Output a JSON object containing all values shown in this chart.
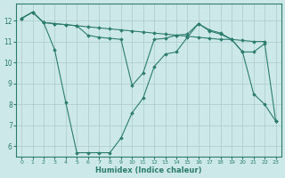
{
  "xlabel": "Humidex (Indice chaleur)",
  "bg_color": "#cce8e8",
  "grid_color": "#aacccc",
  "line_color": "#2d7d6e",
  "xlim": [
    -0.5,
    23.5
  ],
  "ylim": [
    5.5,
    12.8
  ],
  "yticks": [
    6,
    7,
    8,
    9,
    10,
    11,
    12
  ],
  "xticks": [
    0,
    1,
    2,
    3,
    4,
    5,
    6,
    7,
    8,
    9,
    10,
    11,
    12,
    13,
    14,
    15,
    16,
    17,
    18,
    19,
    20,
    21,
    22,
    23
  ],
  "series": [
    {
      "x": [
        0,
        1,
        2,
        3,
        4,
        5,
        6,
        7,
        8,
        9,
        10,
        11,
        12,
        13,
        14,
        15,
        16,
        17,
        18,
        19,
        20,
        21,
        22
      ],
      "y": [
        12.1,
        12.4,
        11.9,
        11.85,
        11.8,
        11.75,
        11.7,
        11.65,
        11.6,
        11.55,
        11.5,
        11.45,
        11.4,
        11.35,
        11.3,
        11.25,
        11.2,
        11.15,
        11.1,
        11.1,
        11.05,
        11.0,
        11.0
      ]
    },
    {
      "x": [
        0,
        1,
        2,
        3,
        4,
        5,
        6,
        7,
        8,
        9,
        10,
        11,
        12,
        13,
        14,
        15,
        16,
        17,
        18,
        19,
        20,
        21,
        22,
        23
      ],
      "y": [
        12.1,
        12.4,
        11.9,
        10.6,
        8.1,
        5.7,
        5.7,
        5.7,
        5.7,
        6.4,
        7.6,
        8.3,
        9.8,
        10.4,
        10.5,
        11.2,
        11.85,
        11.55,
        11.4,
        11.1,
        10.5,
        8.5,
        8.0,
        7.2
      ]
    },
    {
      "x": [
        0,
        1,
        2,
        3,
        4,
        5,
        6,
        7,
        8,
        9,
        10,
        11,
        12,
        13,
        14,
        15,
        16,
        17,
        18,
        19,
        20,
        21,
        22,
        23
      ],
      "y": [
        12.1,
        12.4,
        11.9,
        11.85,
        11.8,
        11.75,
        11.3,
        11.2,
        11.15,
        11.1,
        8.9,
        9.5,
        11.1,
        11.15,
        11.3,
        11.35,
        11.85,
        11.5,
        11.35,
        11.1,
        10.5,
        10.5,
        10.9,
        7.2
      ]
    }
  ]
}
